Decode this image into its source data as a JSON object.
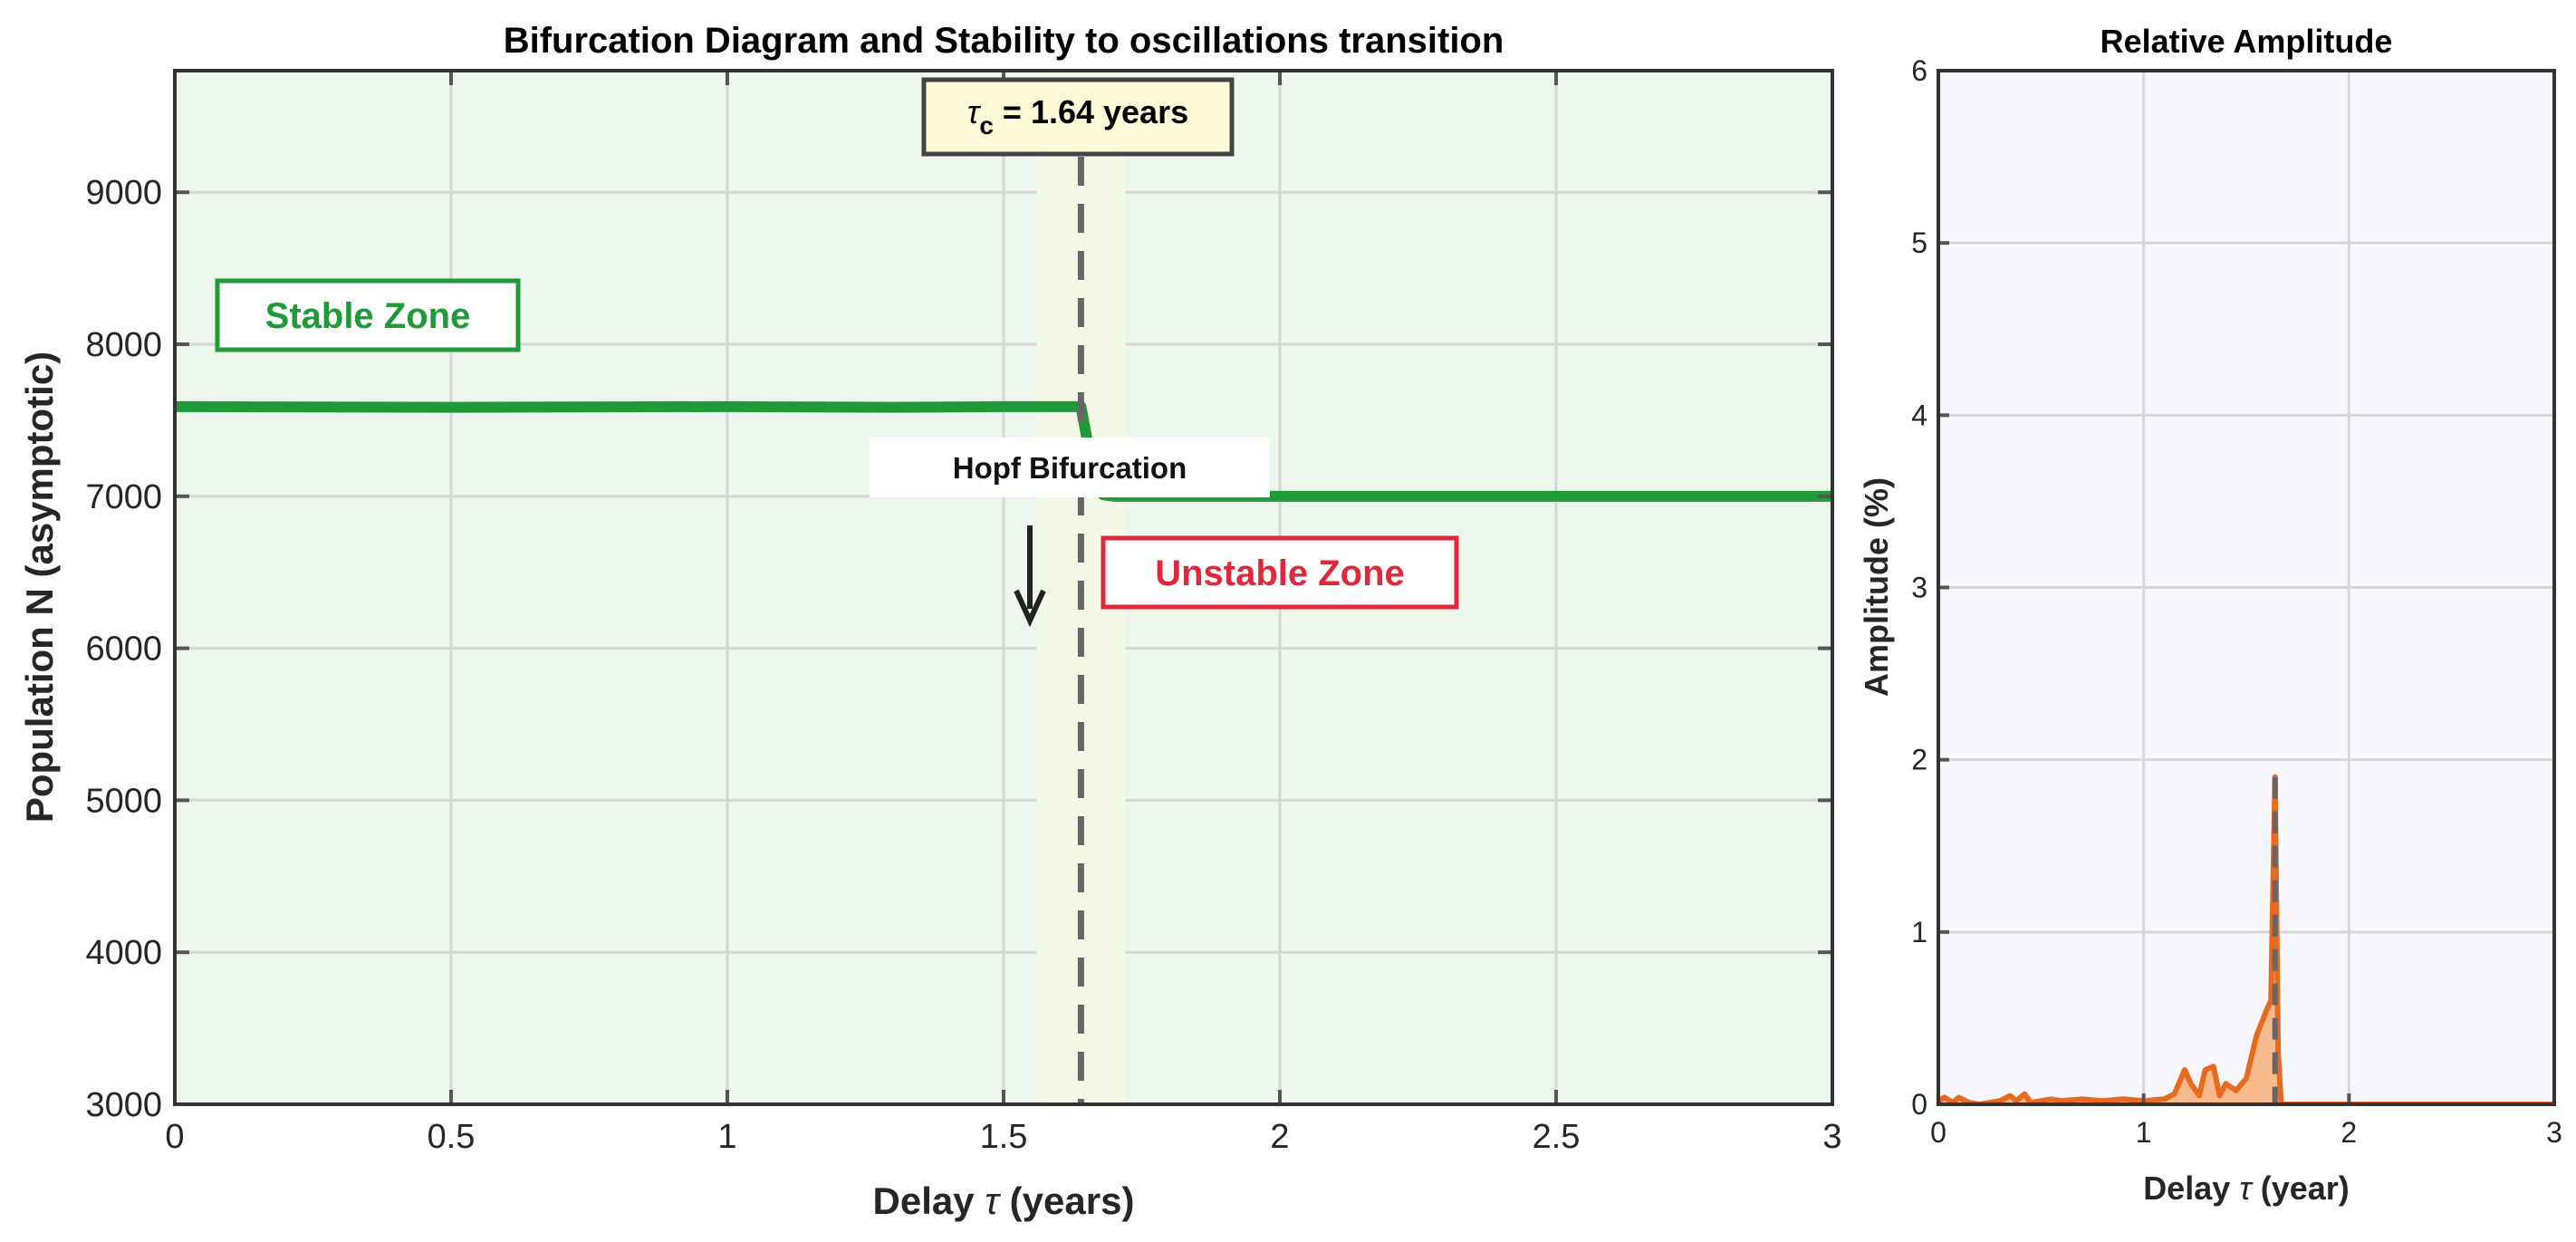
{
  "colors": {
    "stable": "#1f9a38",
    "unstable": "#e0283a",
    "amplitude": "#e86a1e",
    "amplitude_fill": "#f8b98c",
    "left_bg": "#ecf6ec",
    "right_bg": "#f7f7fd",
    "band": "#f3f9e6",
    "critical_line": "#666666",
    "tau_box_bg": "#fdfbd8"
  },
  "chart_data": [
    {
      "type": "line",
      "title": "Bifurcation Diagram and Stability to oscillations transition",
      "xlabel_prefix": "Delay ",
      "xlabel_symbol": "τ",
      "xlabel_suffix": " (years)",
      "ylabel": "Population N (asymptotic)",
      "xlim": [
        0,
        3
      ],
      "ylim": [
        3000,
        9800
      ],
      "xticks": [
        0,
        0.5,
        1,
        1.5,
        2,
        2.5,
        3
      ],
      "xtick_labels": [
        "0",
        "0.5",
        "1",
        "1.5",
        "2",
        "2.5",
        "3"
      ],
      "yticks": [
        3000,
        4000,
        5000,
        6000,
        7000,
        8000,
        9000
      ],
      "ytick_labels": [
        "3000",
        "4000",
        "5000",
        "6000",
        "7000",
        "8000",
        "9000"
      ],
      "grid": true,
      "series": [
        {
          "x": [
            0,
            0.5,
            1.0,
            1.3,
            1.5,
            1.55,
            1.6,
            1.64,
            1.66,
            1.68,
            1.7,
            2.0,
            2.5,
            3.0
          ],
          "y": [
            7590,
            7585,
            7590,
            7585,
            7590,
            7590,
            7590,
            7590,
            7200,
            7010,
            7000,
            7000,
            7000,
            7000
          ]
        }
      ],
      "critical_tau": 1.64,
      "transition_band": [
        1.56,
        1.72
      ],
      "annotations": {
        "tau_c_symbol": "τ",
        "tau_c_sub": "c",
        "tau_c_rest": " = 1.64 years",
        "stable_zone": "Stable Zone",
        "unstable_zone": "Unstable Zone",
        "hopf": "Hopf Bifurcation"
      }
    },
    {
      "type": "area",
      "title": "Relative Amplitude",
      "xlabel_prefix": "Delay ",
      "xlabel_symbol": "τ",
      "xlabel_suffix": " (year)",
      "ylabel": "Amplitude (%)",
      "xlim": [
        0,
        3
      ],
      "ylim": [
        0,
        6
      ],
      "xticks": [
        0,
        1,
        2,
        3
      ],
      "xtick_labels": [
        "0",
        "1",
        "2",
        "3"
      ],
      "yticks": [
        0,
        1,
        2,
        3,
        4,
        5,
        6
      ],
      "ytick_labels": [
        "0",
        "1",
        "2",
        "3",
        "4",
        "5",
        "6"
      ],
      "grid": true,
      "series": [
        {
          "x": [
            0,
            0.03,
            0.07,
            0.1,
            0.15,
            0.2,
            0.25,
            0.3,
            0.35,
            0.38,
            0.42,
            0.45,
            0.5,
            0.55,
            0.6,
            0.7,
            0.8,
            0.9,
            1.0,
            1.1,
            1.15,
            1.2,
            1.23,
            1.27,
            1.3,
            1.34,
            1.37,
            1.4,
            1.45,
            1.5,
            1.55,
            1.6,
            1.62,
            1.64,
            1.655,
            1.67,
            1.7,
            1.8,
            2.0,
            2.5,
            3.0
          ],
          "y": [
            0.02,
            0.04,
            0.01,
            0.04,
            0.01,
            0.0,
            0.01,
            0.02,
            0.05,
            0.02,
            0.06,
            0.01,
            0.02,
            0.03,
            0.02,
            0.03,
            0.02,
            0.03,
            0.02,
            0.03,
            0.06,
            0.2,
            0.12,
            0.05,
            0.2,
            0.22,
            0.05,
            0.12,
            0.08,
            0.15,
            0.4,
            0.55,
            0.6,
            1.9,
            0.3,
            0.0,
            0.0,
            0.0,
            0.0,
            0.0,
            0.0
          ]
        }
      ],
      "critical_tau": 1.64
    }
  ]
}
